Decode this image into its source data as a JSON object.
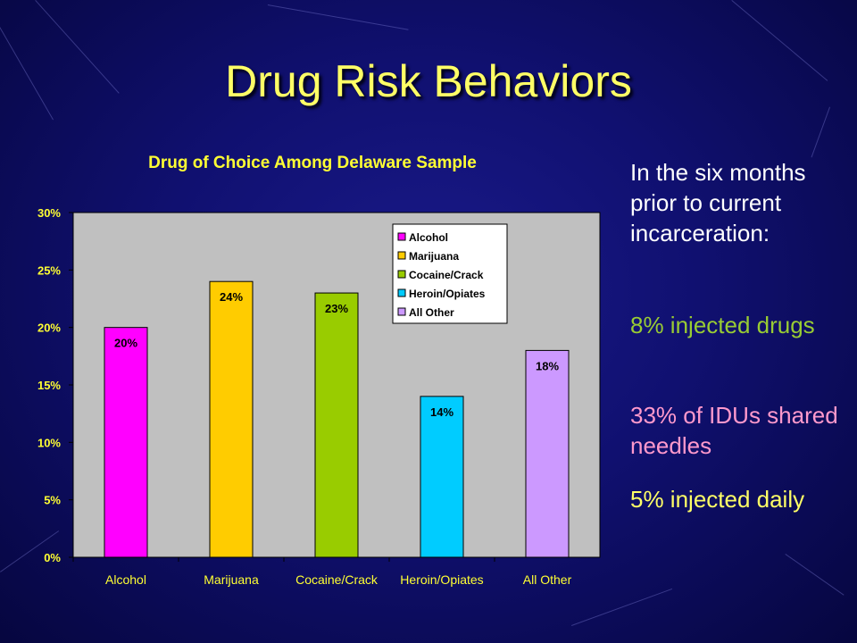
{
  "slide": {
    "title": "Drug Risk Behaviors",
    "intro": "In the six months prior to current incarceration:",
    "stat_injected": "8% injected drugs",
    "stat_shared": "33% of IDUs shared needles",
    "stat_daily": "5% injected daily"
  },
  "colors": {
    "title": "#ffff66",
    "chart_title": "#ffff33",
    "axis_text": "#ffff33",
    "plot_bg": "#c0c0c0",
    "injected": "#99cc33",
    "shared": "#ff99cc",
    "daily": "#ffff66"
  },
  "chart_data": {
    "type": "bar",
    "title": "Drug  of Choice Among Delaware Sample",
    "categories": [
      "Alcohol",
      "Marijuana",
      "Cocaine/Crack",
      "Heroin/Opiates",
      "All Other"
    ],
    "values": [
      20,
      24,
      23,
      14,
      18
    ],
    "data_labels": [
      "20%",
      "24%",
      "23%",
      "14%",
      "18%"
    ],
    "colors": [
      "#ff00ff",
      "#ffcc00",
      "#99cc00",
      "#00ccff",
      "#cc99ff"
    ],
    "ylim": [
      0,
      30
    ],
    "yticks": [
      0,
      5,
      10,
      15,
      20,
      25,
      30
    ],
    "ytick_labels": [
      "0%",
      "5%",
      "10%",
      "15%",
      "20%",
      "25%",
      "30%"
    ],
    "legend": [
      "Alcohol",
      "Marijuana",
      "Cocaine/Crack",
      "Heroin/Opiates",
      "All Other"
    ],
    "legend_position": "top-right",
    "grid": false
  }
}
